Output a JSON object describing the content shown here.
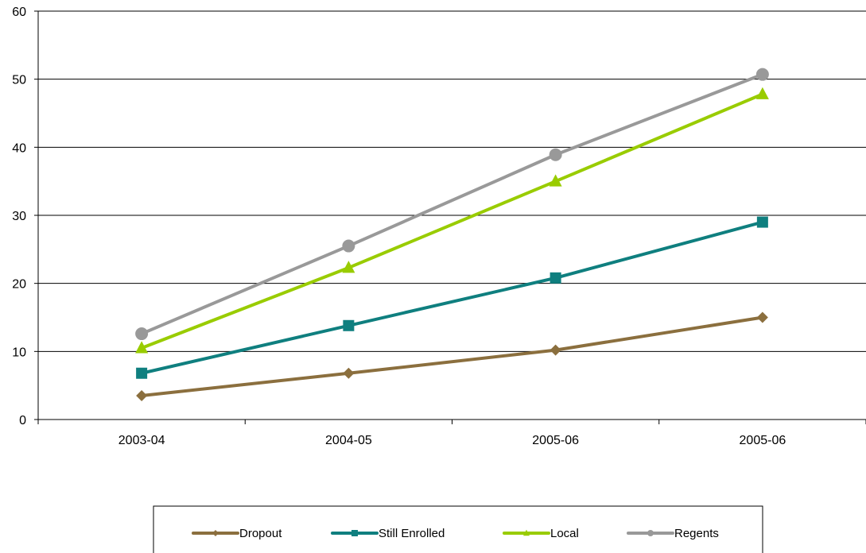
{
  "chart_data": {
    "type": "line",
    "title": "",
    "xlabel": "",
    "ylabel": "",
    "categories": [
      "2003-04",
      "2004-05",
      "2005-06",
      "2005-06"
    ],
    "ylim": [
      0,
      60
    ],
    "yticks": [
      0,
      10,
      20,
      30,
      40,
      50,
      60
    ],
    "grid": "horizontal",
    "legend_position": "bottom",
    "series": [
      {
        "name": "Dropout",
        "values": [
          3.5,
          6.8,
          10.2,
          15.0
        ],
        "color": "#8B6F3E",
        "marker": "diamond"
      },
      {
        "name": "Still Enrolled",
        "values": [
          6.8,
          13.8,
          20.8,
          29.0
        ],
        "color": "#0F7F7F",
        "marker": "square"
      },
      {
        "name": "Local",
        "values": [
          10.5,
          22.3,
          35.0,
          47.8
        ],
        "color": "#99CC00",
        "marker": "triangle"
      },
      {
        "name": "Regents",
        "values": [
          12.6,
          25.5,
          38.9,
          50.7
        ],
        "color": "#999999",
        "marker": "circle"
      }
    ]
  }
}
